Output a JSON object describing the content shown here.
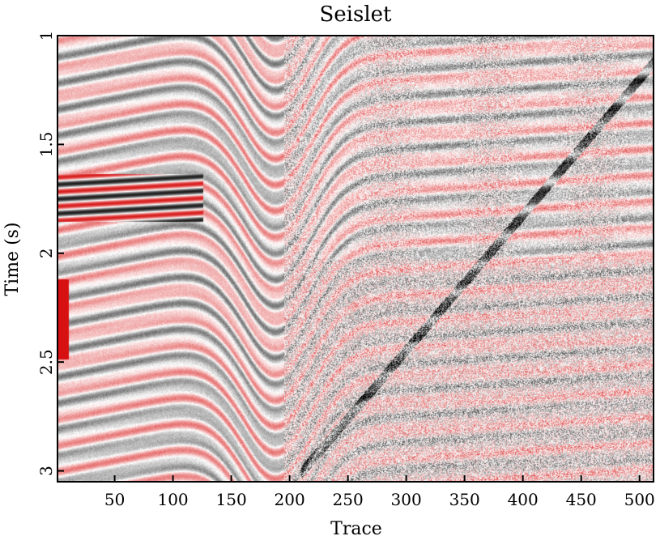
{
  "chart_data": {
    "type": "heatmap",
    "title": "Seislet",
    "xlabel": "Trace",
    "ylabel": "Time (s)",
    "xlim": [
      1,
      512
    ],
    "ylim": [
      1.0,
      3.05
    ],
    "y_inverted": true,
    "x_ticks": [
      50,
      100,
      150,
      200,
      250,
      300,
      350,
      400,
      450,
      500
    ],
    "x_tick_labels": [
      "50",
      "100",
      "150",
      "200",
      "250",
      "300",
      "350",
      "400",
      "450",
      "500"
    ],
    "y_ticks": [
      1.0,
      1.5,
      2.0,
      2.5,
      3.0
    ],
    "y_tick_labels": [
      "1",
      "1.5",
      "2",
      "2.5",
      "3"
    ],
    "colormap": {
      "negative": "#000000",
      "zero": "#ffffff",
      "positive": "#d40000"
    },
    "grid": false,
    "legend": "none"
  }
}
